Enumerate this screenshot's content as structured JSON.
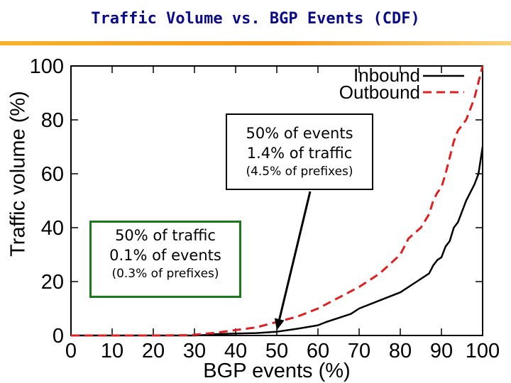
{
  "title": "Traffic Volume vs. BGP Events (CDF)",
  "colors": {
    "title": "#0b0b8a",
    "inbound": "#000000",
    "outbound": "#e02020",
    "left_callout_border": "#1a7a1a"
  },
  "chart_data": {
    "type": "line",
    "xlabel": "BGP events (%)",
    "ylabel": "Traffic volume (%)",
    "xlim": [
      0,
      100
    ],
    "ylim": [
      0,
      100
    ],
    "xticks": [
      "0",
      "10",
      "20",
      "30",
      "40",
      "50",
      "60",
      "70",
      "80",
      "90",
      "100"
    ],
    "yticks": [
      "0",
      "20",
      "40",
      "60",
      "80",
      "100"
    ],
    "legend_placement": "top-right",
    "grid": false,
    "series": [
      {
        "name": "Inbound",
        "style": "solid",
        "x": [
          0,
          30,
          33,
          35,
          40,
          45,
          50,
          55,
          60,
          62,
          65,
          68,
          70,
          75,
          80,
          84,
          87,
          88,
          89,
          90,
          91,
          92,
          93,
          94,
          95,
          96,
          97,
          98,
          99,
          100
        ],
        "y": [
          0,
          0,
          0.2,
          0.5,
          0.7,
          0.9,
          1.4,
          2.5,
          3.8,
          5,
          6.5,
          8,
          10,
          13,
          16,
          20,
          23,
          26,
          28,
          29,
          33,
          35,
          40,
          42,
          46,
          50,
          53,
          56,
          60,
          70
        ]
      },
      {
        "name": "Outbound",
        "style": "dashed",
        "x": [
          0,
          20,
          28,
          30,
          35,
          40,
          45,
          50,
          55,
          60,
          65,
          70,
          75,
          80,
          82,
          85,
          87,
          88,
          89,
          90,
          91,
          92,
          93,
          94,
          95,
          96,
          97,
          98,
          99,
          100
        ],
        "y": [
          0,
          0,
          0.1,
          0.3,
          1,
          2,
          3,
          5,
          7,
          10,
          14,
          18,
          23,
          30,
          36,
          40,
          45,
          50,
          53,
          55,
          60,
          66,
          72,
          76,
          78,
          80,
          84,
          88,
          94,
          100
        ]
      }
    ],
    "annotations": [
      {
        "id": "right",
        "lines": [
          "50% of events",
          "1.4% of traffic",
          "(4.5% of prefixes)"
        ],
        "arrow_to": [
          50,
          1.4
        ]
      },
      {
        "id": "left",
        "lines": [
          "50% of traffic",
          "0.1% of events",
          "(0.3% of prefixes)"
        ]
      }
    ]
  }
}
